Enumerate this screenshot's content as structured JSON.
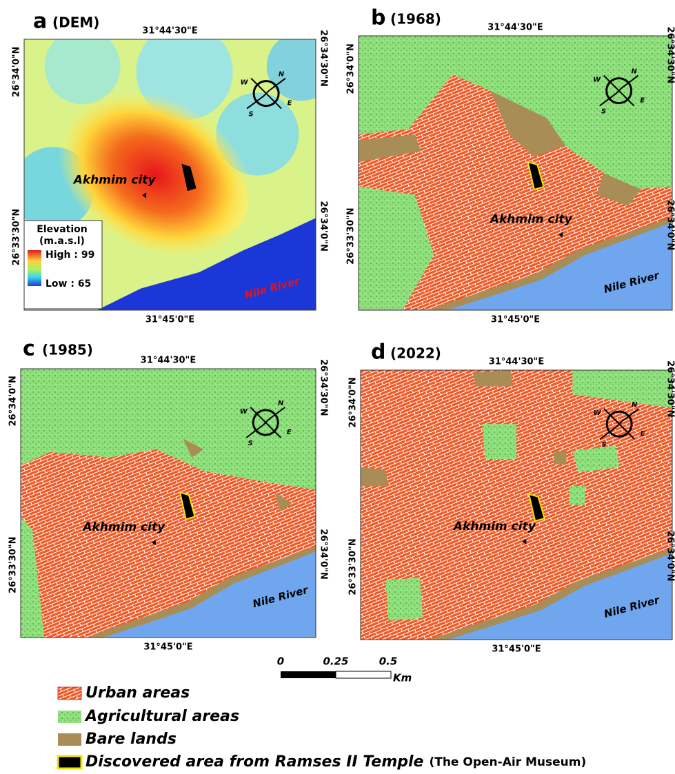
{
  "panels": [
    {
      "letter": "a",
      "subtitle": "(DEM)",
      "top_coord": "31°44'30\"E",
      "bottom_coord": "31°45'0\"E",
      "left_coords": [
        "26°34'0\"N",
        "26°33'30\"N"
      ],
      "right_coords": [
        "26°34'30\"N",
        "26°34'0\"N"
      ],
      "city_label": "Akhmim city",
      "river_label": "Nile River"
    },
    {
      "letter": "b",
      "subtitle": "(1968)",
      "top_coord": "31°44'30\"E",
      "bottom_coord": "31°45'0\"E",
      "left_coords": [
        "26°34'0\"N",
        "26°33'30\"N"
      ],
      "right_coords": [
        "26°34'30\"N",
        "26°34'0\"N"
      ],
      "city_label": "Akhmim city",
      "river_label": "Nile River"
    },
    {
      "letter": "c",
      "subtitle": "(1985)",
      "top_coord": "31°44'30\"E",
      "bottom_coord": "31°45'0\"E",
      "left_coords": [
        "26°34'0\"N",
        "26°33'30\"N"
      ],
      "right_coords": [
        "26°34'30\"N",
        "26°34'0\"N"
      ],
      "city_label": "Akhmim city",
      "river_label": "Nile River"
    },
    {
      "letter": "d",
      "subtitle": "(2022)",
      "top_coord": "31°44'30\"E",
      "bottom_coord": "31°45'0\"E",
      "left_coords": [
        "26°34'0\"N",
        "26°33'30\"N"
      ],
      "right_coords": [
        "26°34'30\"N",
        "26°34'0\"N"
      ],
      "city_label": "Akhmim city",
      "river_label": "Nile River"
    }
  ],
  "compass": [
    "N",
    "E",
    "S",
    "W"
  ],
  "elevation_legend": {
    "title": "Elevation",
    "unit": "(m.a.s.l)",
    "high": "High : 99",
    "low": "Low : 65"
  },
  "scale_bar": {
    "ticks": [
      "0",
      "0.25",
      "0.5"
    ],
    "unit": "Km"
  },
  "legend": [
    {
      "label": "Urban areas"
    },
    {
      "label": "Agricultural areas"
    },
    {
      "label": "Bare lands"
    },
    {
      "label": "Discovered area from Ramses II Temple",
      "note": "(The Open-Air Museum)"
    }
  ]
}
